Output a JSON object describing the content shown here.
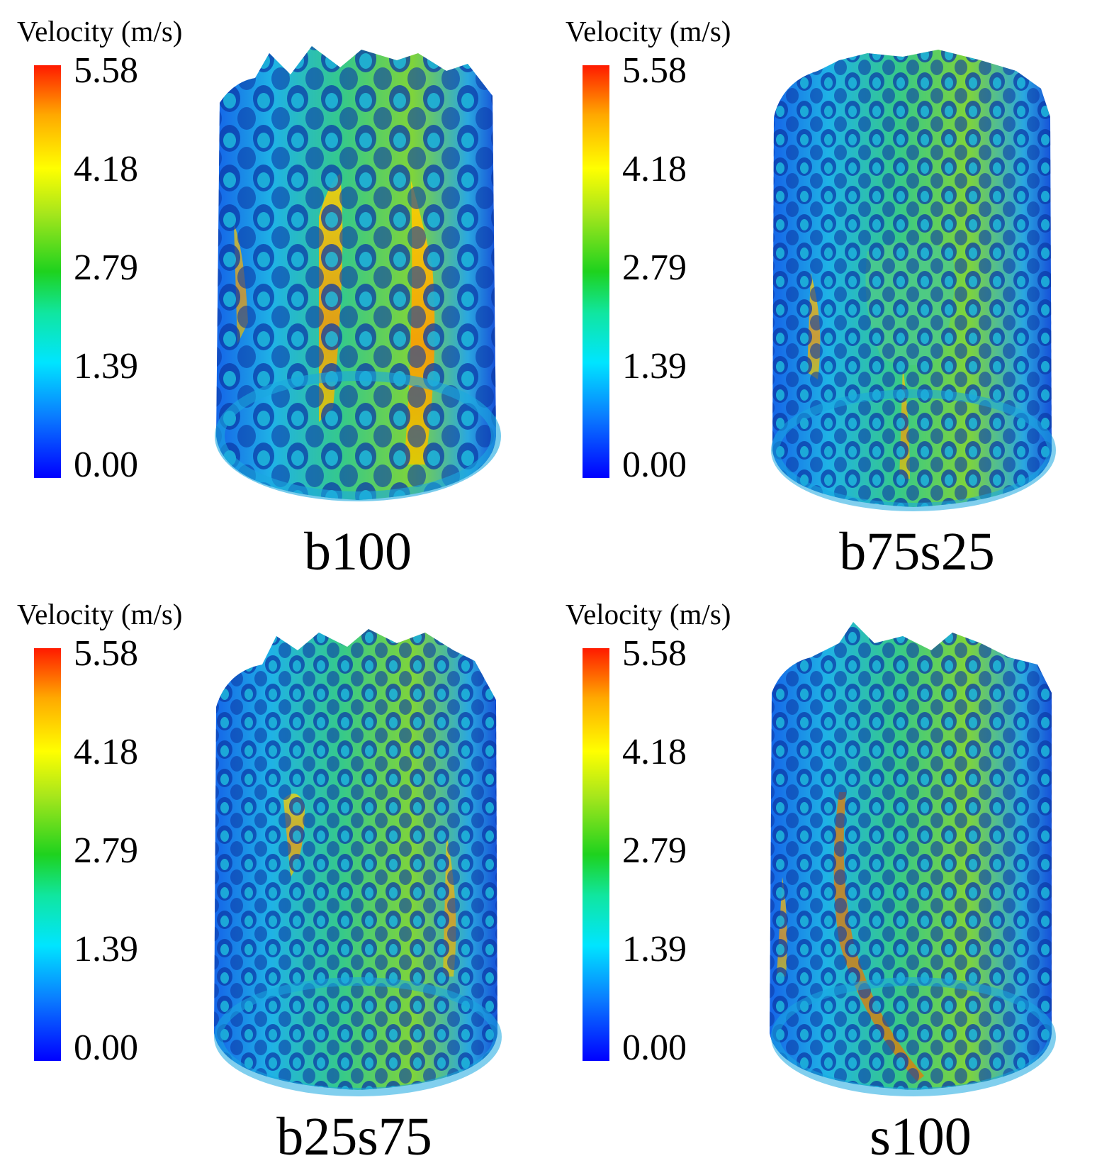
{
  "colorbar": {
    "title": "Velocity (m/s)",
    "ticks": [
      "5.58",
      "4.18",
      "2.79",
      "1.39",
      "0.00"
    ],
    "min": 0.0,
    "max": 5.58,
    "colormap": [
      "#0000ff",
      "#00e5ff",
      "#1ed21e",
      "#ffff00",
      "#ff1a00"
    ]
  },
  "panels": [
    {
      "label": "b100"
    },
    {
      "label": "b75s25"
    },
    {
      "label": "b25s75"
    },
    {
      "label": "s100"
    }
  ]
}
